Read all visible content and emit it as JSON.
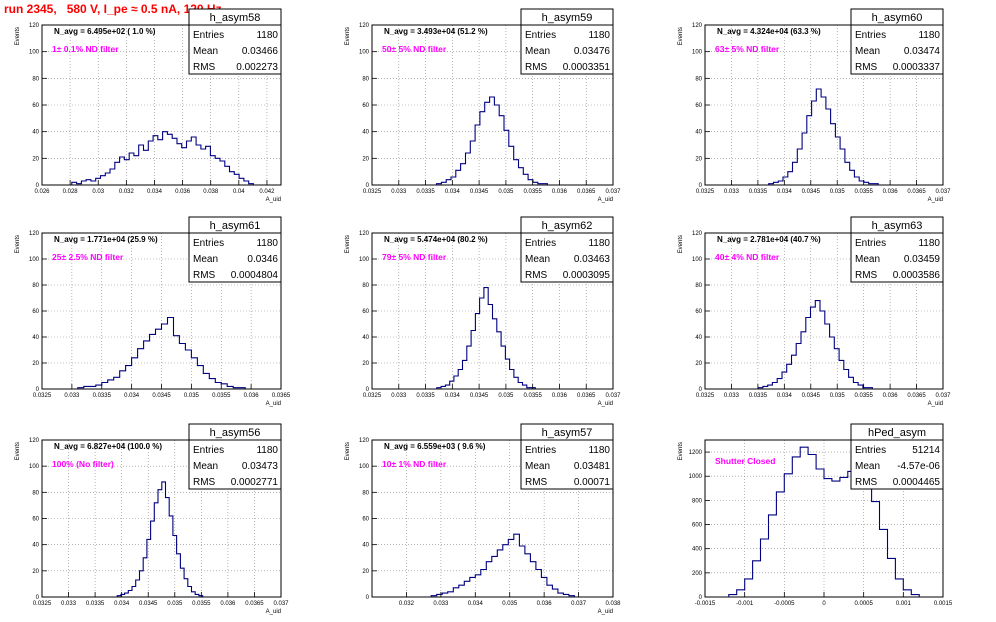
{
  "run_title": "run 2345,   580 V, I_pe ≈ 0.5 nA, 120 Hz",
  "colors": {
    "hist": "#000080",
    "title": "#ff0000",
    "label": "#ff00ff",
    "grid": "#888888"
  },
  "chart_data": [
    {
      "type": "bar",
      "title": "h_asym58",
      "navg": "N_avg = 6.495e+02 ( 1.0 %)",
      "label": "1± 0.1% ND filter",
      "stats": [
        [
          "Entries",
          "1180"
        ],
        [
          "Mean",
          "0.03466"
        ],
        [
          "RMS",
          "0.002273"
        ]
      ],
      "xlabel": "A_uid",
      "ylabel": "Events",
      "xlim": [
        0.026,
        0.043
      ],
      "ylim": [
        0,
        120
      ],
      "xticks": [
        "0.026",
        "0.028",
        "0.03",
        "0.032",
        "0.034",
        "0.036",
        "0.038",
        "0.04",
        "0.042"
      ],
      "xtick_vals": [
        0.026,
        0.028,
        0.03,
        0.032,
        0.034,
        0.036,
        0.038,
        0.04,
        0.042
      ],
      "yticks": [
        0,
        20,
        40,
        60,
        80,
        100,
        120
      ],
      "x": [
        0.02829,
        0.02863,
        0.02897,
        0.02931,
        0.02965,
        0.02999,
        0.03033,
        0.03067,
        0.03101,
        0.03135,
        0.03169,
        0.03203,
        0.03237,
        0.03271,
        0.03305,
        0.03339,
        0.03373,
        0.03407,
        0.03441,
        0.03475,
        0.03509,
        0.03543,
        0.03577,
        0.03611,
        0.03645,
        0.03679,
        0.03713,
        0.03747,
        0.03781,
        0.03815,
        0.03849,
        0.03883,
        0.03917,
        0.03951,
        0.03985,
        0.04019,
        0.04053,
        0.04087
      ],
      "values": [
        2,
        1,
        3,
        4,
        3,
        5,
        7,
        9,
        12,
        17,
        21,
        19,
        24,
        22,
        30,
        26,
        33,
        37,
        34,
        40,
        38,
        35,
        31,
        28,
        33,
        36,
        30,
        27,
        29,
        22,
        20,
        18,
        14,
        10,
        8,
        5,
        3,
        1
      ]
    },
    {
      "type": "bar",
      "title": "h_asym59",
      "navg": "N_avg = 3.493e+04 (51.2 %)",
      "label": "50± 5% ND filter",
      "stats": [
        [
          "Entries",
          "1180"
        ],
        [
          "Mean",
          "0.03476"
        ],
        [
          "RMS",
          "0.0003351"
        ]
      ],
      "xlabel": "A_uid",
      "ylabel": "Events",
      "xlim": [
        0.0325,
        0.037
      ],
      "ylim": [
        0,
        120
      ],
      "xticks": [
        "0.0325",
        "0.033",
        "0.0335",
        "0.034",
        "0.0345",
        "0.035",
        "0.0355",
        "0.036",
        "0.0365",
        "0.037"
      ],
      "xtick_vals": [
        0.0325,
        0.033,
        0.0335,
        0.034,
        0.0345,
        0.035,
        0.0355,
        0.036,
        0.0365,
        0.037
      ],
      "yticks": [
        0,
        20,
        40,
        60,
        80,
        100,
        120
      ],
      "x": [
        0.03375,
        0.03384,
        0.03393,
        0.03402,
        0.03411,
        0.0342,
        0.03429,
        0.03438,
        0.03447,
        0.03456,
        0.03465,
        0.03474,
        0.03483,
        0.03492,
        0.03501,
        0.0351,
        0.03519,
        0.03528,
        0.03537,
        0.03546,
        0.03555,
        0.03564,
        0.03573
      ],
      "values": [
        1,
        2,
        4,
        6,
        11,
        16,
        24,
        33,
        45,
        55,
        62,
        66,
        60,
        52,
        41,
        29,
        19,
        13,
        8,
        4,
        2,
        1,
        1
      ]
    },
    {
      "type": "bar",
      "title": "h_asym60",
      "navg": "N_avg = 4.324e+04 (63.3 %)",
      "label": "63± 5% ND filter",
      "stats": [
        [
          "Entries",
          "1180"
        ],
        [
          "Mean",
          "0.03474"
        ],
        [
          "RMS",
          "0.0003337"
        ]
      ],
      "xlabel": "A_uid",
      "ylabel": "Events",
      "xlim": [
        0.0325,
        0.037
      ],
      "ylim": [
        0,
        120
      ],
      "xticks": [
        "0.0325",
        "0.033",
        "0.0335",
        "0.034",
        "0.0345",
        "0.035",
        "0.0355",
        "0.036",
        "0.0365",
        "0.037"
      ],
      "xtick_vals": [
        0.0325,
        0.033,
        0.0335,
        0.034,
        0.0345,
        0.035,
        0.0355,
        0.036,
        0.0365,
        0.037
      ],
      "yticks": [
        0,
        20,
        40,
        60,
        80,
        100,
        120
      ],
      "x": [
        0.03375,
        0.03384,
        0.03393,
        0.03402,
        0.03411,
        0.0342,
        0.03429,
        0.03438,
        0.03447,
        0.03456,
        0.03465,
        0.03474,
        0.03483,
        0.03492,
        0.03501,
        0.0351,
        0.03519,
        0.03528,
        0.03537,
        0.03546,
        0.03555,
        0.03564,
        0.03573
      ],
      "values": [
        1,
        2,
        3,
        6,
        10,
        17,
        27,
        39,
        52,
        63,
        72,
        66,
        57,
        46,
        36,
        27,
        17,
        11,
        6,
        3,
        2,
        1,
        1
      ]
    },
    {
      "type": "bar",
      "title": "h_asym61",
      "navg": "N_avg = 1.771e+04 (25.9 %)",
      "label": "25± 2.5% ND filter",
      "stats": [
        [
          "Entries",
          "1180"
        ],
        [
          "Mean",
          "0.0346"
        ],
        [
          "RMS",
          "0.0004804"
        ]
      ],
      "xlabel": "A_uid",
      "ylabel": "Events",
      "xlim": [
        0.0325,
        0.0365
      ],
      "ylim": [
        0,
        120
      ],
      "xticks": [
        "0.0325",
        "0.033",
        "0.0335",
        "0.034",
        "0.0345",
        "0.035",
        "0.0355",
        "0.036",
        "0.0365"
      ],
      "xtick_vals": [
        0.0325,
        0.033,
        0.0335,
        0.034,
        0.0345,
        0.035,
        0.0355,
        0.036,
        0.0365
      ],
      "yticks": [
        0,
        20,
        40,
        60,
        80,
        100,
        120
      ],
      "x": [
        0.03315,
        0.03325,
        0.03335,
        0.03345,
        0.03355,
        0.03365,
        0.03375,
        0.03385,
        0.03395,
        0.03405,
        0.03415,
        0.03425,
        0.03435,
        0.03445,
        0.03455,
        0.03465,
        0.03475,
        0.03485,
        0.03495,
        0.03505,
        0.03515,
        0.03525,
        0.03535,
        0.03545,
        0.03555,
        0.03565,
        0.03575,
        0.03585
      ],
      "values": [
        1,
        2,
        2,
        3,
        5,
        7,
        9,
        14,
        18,
        24,
        31,
        37,
        42,
        46,
        50,
        55,
        41,
        35,
        30,
        24,
        18,
        12,
        8,
        5,
        4,
        2,
        1,
        1
      ]
    },
    {
      "type": "bar",
      "title": "h_asym62",
      "navg": "N_avg = 5.474e+04 (80.2 %)",
      "label": "79± 5% ND filter",
      "stats": [
        [
          "Entries",
          "1180"
        ],
        [
          "Mean",
          "0.03463"
        ],
        [
          "RMS",
          "0.0003095"
        ]
      ],
      "xlabel": "A_uid",
      "ylabel": "Events",
      "xlim": [
        0.0325,
        0.037
      ],
      "ylim": [
        0,
        120
      ],
      "xticks": [
        "0.0325",
        "0.033",
        "0.0335",
        "0.034",
        "0.0345",
        "0.035",
        "0.0355",
        "0.036",
        "0.0365",
        "0.037"
      ],
      "xtick_vals": [
        0.0325,
        0.033,
        0.0335,
        0.034,
        0.0345,
        0.035,
        0.0355,
        0.036,
        0.0365,
        0.037
      ],
      "yticks": [
        0,
        20,
        40,
        60,
        80,
        100,
        120
      ],
      "x": [
        0.03375,
        0.03383,
        0.03391,
        0.03399,
        0.03407,
        0.03415,
        0.03423,
        0.03431,
        0.03439,
        0.03447,
        0.03455,
        0.03463,
        0.03471,
        0.03479,
        0.03487,
        0.03495,
        0.03503,
        0.03511,
        0.03519,
        0.03527,
        0.03535,
        0.03543,
        0.03551
      ],
      "values": [
        1,
        2,
        3,
        6,
        10,
        15,
        22,
        33,
        45,
        58,
        70,
        78,
        65,
        54,
        44,
        33,
        23,
        15,
        9,
        5,
        3,
        1,
        1
      ]
    },
    {
      "type": "bar",
      "title": "h_asym63",
      "navg": "N_avg = 2.781e+04 (40.7 %)",
      "label": "40± 4% ND filter",
      "stats": [
        [
          "Entries",
          "1180"
        ],
        [
          "Mean",
          "0.03459"
        ],
        [
          "RMS",
          "0.0003586"
        ]
      ],
      "xlabel": "A_uid",
      "ylabel": "Events",
      "xlim": [
        0.0325,
        0.037
      ],
      "ylim": [
        0,
        120
      ],
      "xticks": [
        "0.0325",
        "0.033",
        "0.0335",
        "0.034",
        "0.0345",
        "0.035",
        "0.0355",
        "0.036",
        "0.0365",
        "0.037"
      ],
      "xtick_vals": [
        0.0325,
        0.033,
        0.0335,
        0.034,
        0.0345,
        0.035,
        0.0355,
        0.036,
        0.0365,
        0.037
      ],
      "yticks": [
        0,
        20,
        40,
        60,
        80,
        100,
        120
      ],
      "x": [
        0.03355,
        0.03364,
        0.03373,
        0.03382,
        0.03391,
        0.034,
        0.03409,
        0.03418,
        0.03427,
        0.03436,
        0.03445,
        0.03454,
        0.03463,
        0.03472,
        0.03481,
        0.0349,
        0.03499,
        0.03508,
        0.03517,
        0.03526,
        0.03535,
        0.03544,
        0.03553,
        0.03562
      ],
      "values": [
        1,
        2,
        3,
        5,
        8,
        13,
        19,
        26,
        35,
        44,
        55,
        63,
        68,
        60,
        50,
        40,
        31,
        22,
        15,
        9,
        5,
        3,
        1,
        1
      ]
    },
    {
      "type": "bar",
      "title": "h_asym56",
      "navg": "N_avg = 6.827e+04 (100.0 %)",
      "label": "100% (No filter)",
      "stats": [
        [
          "Entries",
          "1180"
        ],
        [
          "Mean",
          "0.03473"
        ],
        [
          "RMS",
          "0.0002771"
        ]
      ],
      "xlabel": "A_uid",
      "ylabel": "Events",
      "xlim": [
        0.0325,
        0.037
      ],
      "ylim": [
        0,
        120
      ],
      "xticks": [
        "0.0325",
        "0.033",
        "0.0335",
        "0.034",
        "0.0345",
        "0.035",
        "0.0355",
        "0.036",
        "0.0365",
        "0.037"
      ],
      "xtick_vals": [
        0.0325,
        0.033,
        0.0335,
        0.034,
        0.0345,
        0.035,
        0.0355,
        0.036,
        0.0365,
        0.037
      ],
      "yticks": [
        0,
        20,
        40,
        60,
        80,
        100,
        120
      ],
      "x": [
        0.03395,
        0.03402,
        0.03409,
        0.03416,
        0.03423,
        0.0343,
        0.03437,
        0.03444,
        0.03451,
        0.03458,
        0.03465,
        0.03472,
        0.03479,
        0.03486,
        0.03493,
        0.035,
        0.03507,
        0.03514,
        0.03521,
        0.03528,
        0.03535,
        0.03542,
        0.03549
      ],
      "values": [
        1,
        2,
        3,
        5,
        8,
        13,
        20,
        30,
        44,
        58,
        72,
        82,
        88,
        76,
        62,
        47,
        33,
        22,
        14,
        8,
        4,
        2,
        1
      ]
    },
    {
      "type": "bar",
      "title": "h_asym57",
      "navg": "N_avg = 6.559e+03 ( 9.6 %)",
      "label": "10± 1% ND filter",
      "stats": [
        [
          "Entries",
          "1180"
        ],
        [
          "Mean",
          "0.03481"
        ],
        [
          "RMS",
          "0.00071"
        ]
      ],
      "xlabel": "A_uid",
      "ylabel": "Events",
      "xlim": [
        0.031,
        0.038
      ],
      "ylim": [
        0,
        120
      ],
      "xticks": [
        "0.032",
        "0.033",
        "0.034",
        "0.035",
        "0.036",
        "0.037",
        "0.038"
      ],
      "xtick_vals": [
        0.032,
        0.033,
        0.034,
        0.035,
        0.036,
        0.037,
        0.038
      ],
      "yticks": [
        0,
        20,
        40,
        60,
        80,
        100,
        120
      ],
      "x": [
        0.0328,
        0.03296,
        0.03312,
        0.03328,
        0.03344,
        0.0336,
        0.03376,
        0.03392,
        0.03408,
        0.03424,
        0.0344,
        0.03456,
        0.03472,
        0.03488,
        0.03504,
        0.0352,
        0.03536,
        0.03552,
        0.03568,
        0.03584,
        0.036,
        0.03616,
        0.03632,
        0.03648,
        0.03664,
        0.0368
      ],
      "values": [
        1,
        2,
        3,
        4,
        7,
        9,
        12,
        15,
        17,
        21,
        27,
        31,
        36,
        40,
        44,
        48,
        39,
        33,
        27,
        21,
        15,
        9,
        6,
        3,
        2,
        1
      ]
    },
    {
      "type": "bar",
      "title": "hPed_asym",
      "navg": "",
      "label": "Shutter Closed",
      "stats": [
        [
          "Entries",
          "51214"
        ],
        [
          "Mean",
          "-4.57e-06"
        ],
        [
          "RMS",
          "0.0004465"
        ]
      ],
      "xlabel": "",
      "ylabel": "Events",
      "xlim": [
        -0.0015,
        0.0015
      ],
      "ylim": [
        0,
        1300
      ],
      "xticks": [
        "-0.0015",
        "-0.001",
        "-0.0005",
        "0",
        "0.0005",
        "0.001",
        "0.0015"
      ],
      "xtick_vals": [
        -0.0015,
        -0.001,
        -0.0005,
        0,
        0.0005,
        0.001,
        0.0015
      ],
      "yticks": [
        0,
        200,
        400,
        600,
        800,
        1000,
        1200
      ],
      "x": [
        -0.00115,
        -0.00105,
        -0.00095,
        -0.00085,
        -0.00075,
        -0.00065,
        -0.00055,
        -0.00045,
        -0.00035,
        -0.00025,
        -0.00015,
        -5e-05,
        5e-05,
        0.00015,
        0.00025,
        0.00035,
        0.00045,
        0.00055,
        0.00065,
        0.00075,
        0.00085,
        0.00095,
        0.00105,
        0.00115
      ],
      "values": [
        20,
        60,
        150,
        300,
        480,
        680,
        870,
        1020,
        1160,
        1240,
        1180,
        1060,
        980,
        960,
        990,
        1040,
        1040,
        980,
        790,
        560,
        320,
        150,
        60,
        20
      ]
    }
  ]
}
